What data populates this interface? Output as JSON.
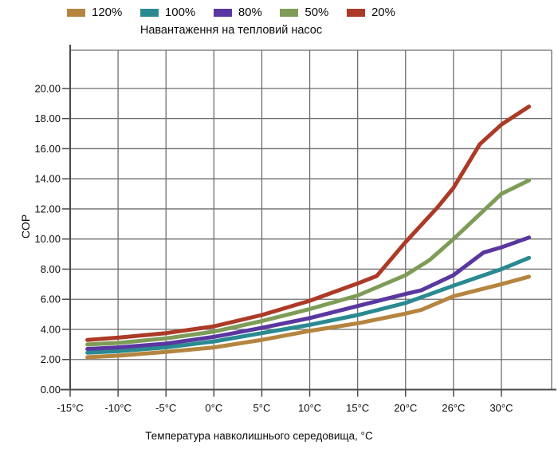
{
  "chart_data": {
    "type": "line",
    "title": "Навантаження на тепловий насос",
    "xlabel": "Температура навколишнього середовища, °C",
    "ylabel": "COP",
    "x_tick_values": [
      -15,
      -10,
      -5,
      0,
      5,
      10,
      15,
      20,
      26,
      30
    ],
    "x_tick_labels": [
      "-15°C",
      "-10°C",
      "-5°C",
      "0°C",
      "5°C",
      "10°C",
      "15°C",
      "20°C",
      "26°C",
      "30°C"
    ],
    "y_tick_values": [
      0,
      2,
      4,
      6,
      8,
      10,
      12,
      14,
      16,
      18,
      20
    ],
    "y_tick_labels": [
      "0.00",
      "2.00",
      "4.00",
      "6.00",
      "8.00",
      "10.00",
      "12.00",
      "14.00",
      "16.00",
      "18.00",
      "20.00"
    ],
    "ylim": [
      0,
      22
    ],
    "grid": true,
    "legend_position": "top",
    "series": [
      {
        "name": "120%",
        "color": "#b5853f",
        "points": [
          [
            -13.2,
            2.15
          ],
          [
            -10,
            2.25
          ],
          [
            -5,
            2.5
          ],
          [
            0,
            2.8
          ],
          [
            5,
            3.3
          ],
          [
            10,
            3.9
          ],
          [
            15,
            4.4
          ],
          [
            20,
            5.05
          ],
          [
            22,
            5.3
          ],
          [
            26,
            6.2
          ],
          [
            30,
            7.0
          ],
          [
            32.3,
            7.5
          ]
        ]
      },
      {
        "name": "100%",
        "color": "#2a8a91",
        "points": [
          [
            -13.2,
            2.45
          ],
          [
            -10,
            2.55
          ],
          [
            -5,
            2.8
          ],
          [
            0,
            3.2
          ],
          [
            5,
            3.75
          ],
          [
            10,
            4.3
          ],
          [
            15,
            4.95
          ],
          [
            20,
            5.75
          ],
          [
            26,
            6.9
          ],
          [
            30,
            8.0
          ],
          [
            32.3,
            8.75
          ]
        ]
      },
      {
        "name": "80%",
        "color": "#5a37a0",
        "points": [
          [
            -13.2,
            2.7
          ],
          [
            -10,
            2.8
          ],
          [
            -5,
            3.05
          ],
          [
            0,
            3.5
          ],
          [
            5,
            4.1
          ],
          [
            10,
            4.75
          ],
          [
            15,
            5.55
          ],
          [
            20,
            6.35
          ],
          [
            22,
            6.6
          ],
          [
            26,
            7.6
          ],
          [
            28.5,
            9.1
          ],
          [
            30,
            9.45
          ],
          [
            32.3,
            10.1
          ]
        ]
      },
      {
        "name": "50%",
        "color": "#7e9c58",
        "points": [
          [
            -13.2,
            3.0
          ],
          [
            -10,
            3.1
          ],
          [
            -5,
            3.4
          ],
          [
            0,
            3.85
          ],
          [
            5,
            4.55
          ],
          [
            10,
            5.35
          ],
          [
            15,
            6.25
          ],
          [
            20,
            7.6
          ],
          [
            23,
            8.6
          ],
          [
            26,
            10.0
          ],
          [
            30,
            13.0
          ],
          [
            32.3,
            13.9
          ]
        ]
      },
      {
        "name": "20%",
        "color": "#ac3a27",
        "points": [
          [
            -13.2,
            3.3
          ],
          [
            -10,
            3.45
          ],
          [
            -5,
            3.75
          ],
          [
            0,
            4.2
          ],
          [
            5,
            4.95
          ],
          [
            10,
            5.9
          ],
          [
            15,
            7.05
          ],
          [
            17,
            7.55
          ],
          [
            20,
            9.8
          ],
          [
            24,
            12.1
          ],
          [
            26,
            13.4
          ],
          [
            28.2,
            16.3
          ],
          [
            30,
            17.6
          ],
          [
            32.3,
            18.8
          ]
        ]
      }
    ],
    "colors": {
      "grid": "#6e6e6e",
      "axis": "#4b4b4b",
      "background": "#ffffff"
    }
  }
}
